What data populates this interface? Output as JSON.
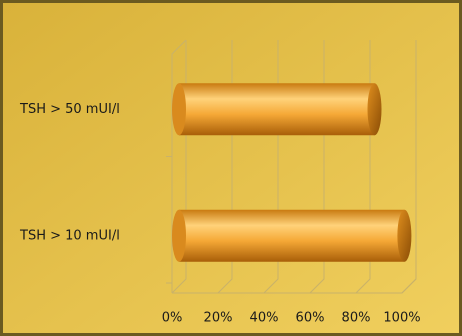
{
  "chart_data": {
    "type": "bar",
    "orientation": "horizontal",
    "categories": [
      "TSH > 50 mUI/l",
      "TSH > 10 mUI/l"
    ],
    "values": [
      85,
      98
    ],
    "color": "#f0a830",
    "xlim": [
      0,
      100
    ],
    "xticks": [
      {
        "value": 0,
        "label": "0%"
      },
      {
        "value": 20,
        "label": "20%"
      },
      {
        "value": 40,
        "label": "40%"
      },
      {
        "value": 60,
        "label": "60%"
      },
      {
        "value": 80,
        "label": "80%"
      },
      {
        "value": 100,
        "label": "100%"
      }
    ],
    "grid": true
  }
}
